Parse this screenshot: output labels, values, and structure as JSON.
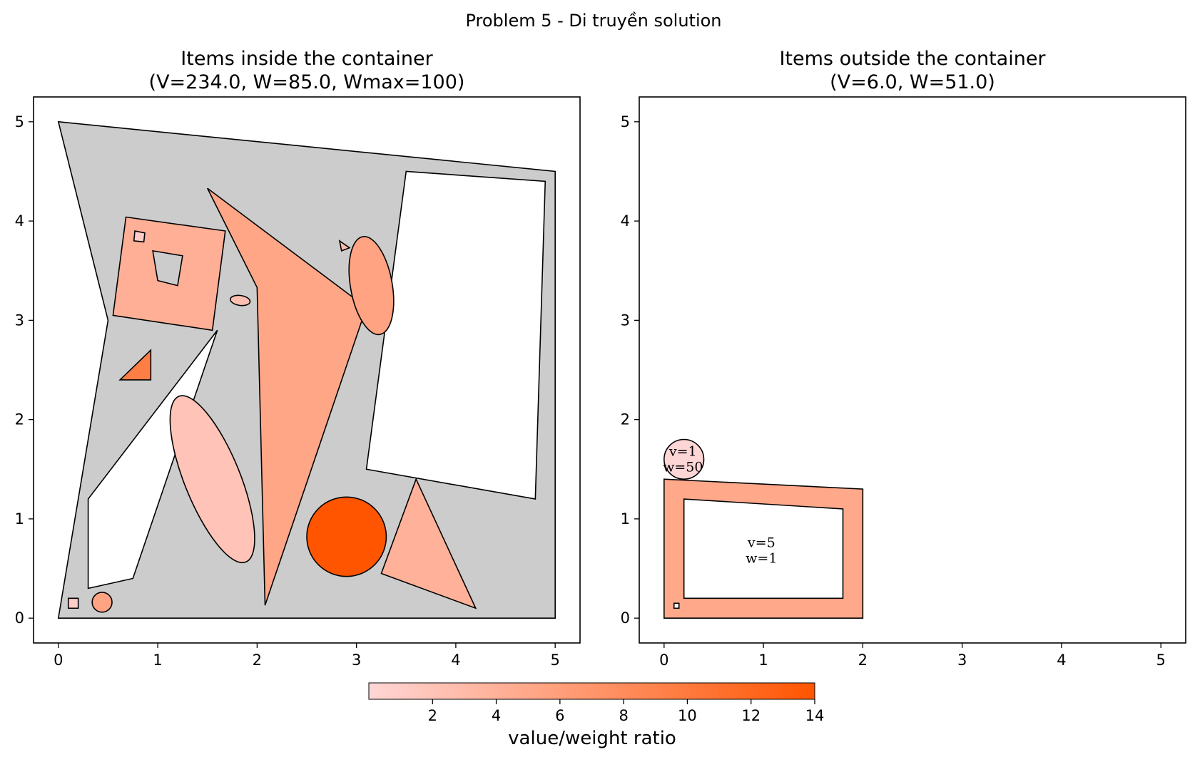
{
  "suptitle": "Problem 5 - Di truyền solution",
  "colors": {
    "container_fill": "#cccccc",
    "edge": "#000000",
    "hole_fill": "#ffffff",
    "cmap_low": "#ffd6d6",
    "cmap_high": "#ff5500"
  },
  "chart_data": [
    {
      "type": "polygon_packing",
      "title": "Items inside the container\n(V=234.0, W=85.0, Wmax=100)",
      "title_lines": [
        "Items inside the container",
        "(V=234.0, W=85.0, Wmax=100)"
      ],
      "xlim": [
        -0.25,
        5.25
      ],
      "ylim": [
        -0.25,
        5.25
      ],
      "xticks": [
        0,
        1,
        2,
        3,
        4,
        5
      ],
      "yticks": [
        0,
        1,
        2,
        3,
        4,
        5
      ],
      "container": {
        "outer": [
          [
            0,
            0
          ],
          [
            5,
            0
          ],
          [
            5,
            4.5
          ],
          [
            0,
            5
          ],
          [
            0.5,
            3
          ]
        ],
        "holes": [
          [
            [
              3.5,
              4.5
            ],
            [
              4.9,
              4.4
            ],
            [
              4.8,
              1.2
            ],
            [
              3.1,
              1.5
            ]
          ],
          [
            [
              0.3,
              0.3
            ],
            [
              0.75,
              0.4
            ],
            [
              1.6,
              2.9
            ],
            [
              0.3,
              1.2
            ]
          ]
        ]
      },
      "items": [
        {
          "shape": "polygon",
          "points": [
            [
              1.5,
              4.33
            ],
            [
              2.0,
              3.33
            ],
            [
              2.08,
              0.13
            ],
            [
              3.1,
              3.13
            ]
          ],
          "ratio": 5.2
        },
        {
          "shape": "polygon",
          "points": [
            [
              0.68,
              4.04
            ],
            [
              1.68,
              3.9
            ],
            [
              1.55,
              2.9
            ],
            [
              0.55,
              3.05
            ]
          ],
          "ratio": 4.2,
          "holes": [
            [
              [
                0.95,
                3.7
              ],
              [
                1.25,
                3.65
              ],
              [
                1.2,
                3.35
              ],
              [
                1.0,
                3.4
              ]
            ]
          ]
        },
        {
          "shape": "ellipse",
          "cx": 3.15,
          "cy": 3.35,
          "rx": 0.21,
          "ry": 0.5,
          "angle_deg": -10,
          "ratio": 5.5
        },
        {
          "shape": "ellipse",
          "cx": 1.55,
          "cy": 1.4,
          "rx": 0.28,
          "ry": 0.9,
          "angle_deg": -22,
          "ratio": 2.0
        },
        {
          "shape": "circle",
          "cx": 2.9,
          "cy": 0.82,
          "r": 0.4,
          "ratio": 14.0
        },
        {
          "shape": "polygon",
          "points": [
            [
              3.6,
              1.4
            ],
            [
              4.2,
              0.1
            ],
            [
              3.25,
              0.45
            ]
          ],
          "ratio": 4.0
        },
        {
          "shape": "polygon",
          "points": [
            [
              0.62,
              2.4
            ],
            [
              0.93,
              2.4
            ],
            [
              0.93,
              2.7
            ]
          ],
          "ratio": 9.5
        },
        {
          "shape": "ellipse",
          "cx": 1.83,
          "cy": 3.2,
          "rx": 0.1,
          "ry": 0.05,
          "angle_deg": 8,
          "ratio": 2.5
        },
        {
          "shape": "polygon",
          "points": [
            [
              2.83,
              3.8
            ],
            [
              2.93,
              3.73
            ],
            [
              2.85,
              3.7
            ]
          ],
          "ratio": 3.0
        },
        {
          "shape": "polygon",
          "points": [
            [
              0.77,
              3.9
            ],
            [
              0.87,
              3.88
            ],
            [
              0.86,
              3.79
            ],
            [
              0.76,
              3.8
            ]
          ],
          "ratio": 1.0
        },
        {
          "shape": "circle",
          "cx": 0.44,
          "cy": 0.16,
          "r": 0.1,
          "ratio": 5.5
        },
        {
          "shape": "polygon",
          "points": [
            [
              0.1,
              0.1
            ],
            [
              0.2,
              0.1
            ],
            [
              0.2,
              0.2
            ],
            [
              0.1,
              0.2
            ]
          ],
          "ratio": 1.0
        }
      ]
    },
    {
      "type": "polygon_packing",
      "title": "Items outside the container\n(V=6.0, W=51.0)",
      "title_lines": [
        "Items outside the container",
        "(V=6.0, W=51.0)"
      ],
      "xlim": [
        -0.25,
        5.25
      ],
      "ylim": [
        -0.25,
        5.25
      ],
      "xticks": [
        0,
        1,
        2,
        3,
        4,
        5
      ],
      "yticks": [
        0,
        1,
        2,
        3,
        4,
        5
      ],
      "items": [
        {
          "shape": "polygon",
          "points": [
            [
              0,
              0
            ],
            [
              2,
              0
            ],
            [
              2,
              1.3
            ],
            [
              0,
              1.4
            ]
          ],
          "ratio": 5.0,
          "holes": [
            [
              [
                0.2,
                0.2
              ],
              [
                1.8,
                0.2
              ],
              [
                1.8,
                1.1
              ],
              [
                0.2,
                1.2
              ]
            ]
          ],
          "label_lines": [
            "v=5",
            "w=1"
          ],
          "label_x": 0.98,
          "label_y": 0.68
        },
        {
          "shape": "circle",
          "cx": 0.2,
          "cy": 1.6,
          "r": 0.2,
          "ratio": 0.02,
          "label_lines": [
            "v=1",
            "w=50"
          ],
          "label_x": 0.19,
          "label_y": 1.6
        },
        {
          "shape": "polygon",
          "points": [
            [
              0.1,
              0.1
            ],
            [
              0.15,
              0.1
            ],
            [
              0.15,
              0.15
            ],
            [
              0.1,
              0.15
            ]
          ],
          "ratio": 0.0,
          "fill": "#ffffff"
        }
      ]
    }
  ],
  "colorbar": {
    "label": "value/weight ratio",
    "min": 0,
    "max": 14,
    "ticks": [
      2,
      4,
      6,
      8,
      10,
      12,
      14
    ]
  }
}
